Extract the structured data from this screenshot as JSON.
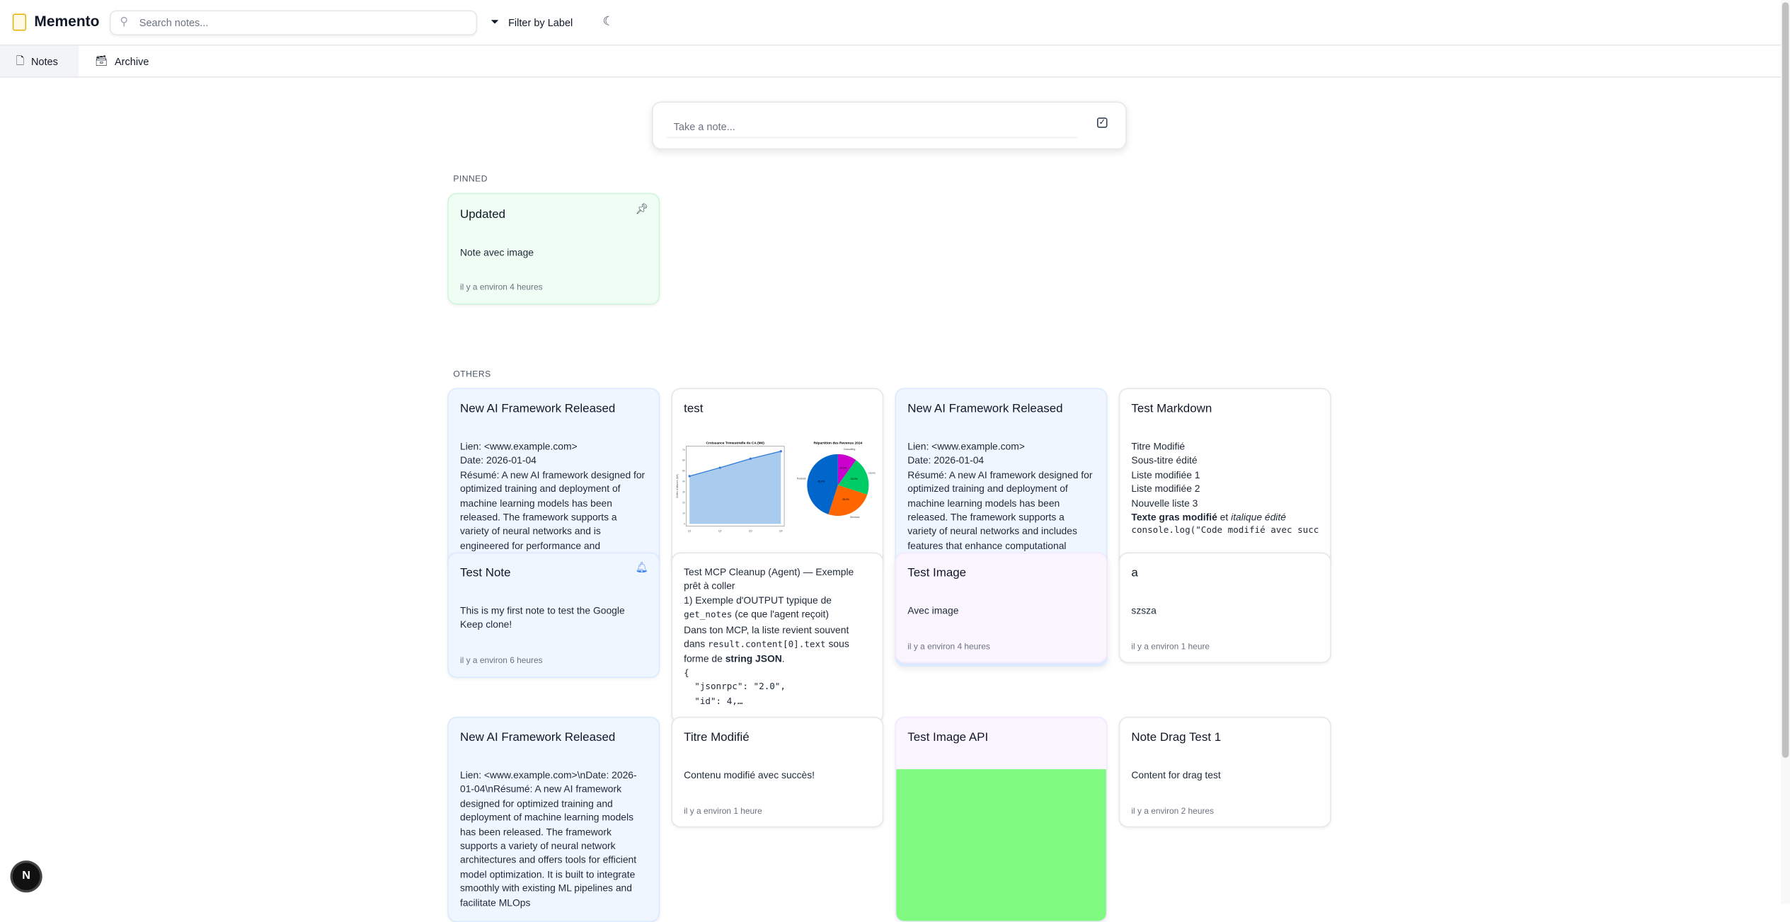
{
  "app": {
    "title": "Memento",
    "search_placeholder": "Search notes...",
    "filter_label": "Filter by Label",
    "take_note_placeholder": "Take a note...",
    "brand_color": "#eab308"
  },
  "tabs": [
    {
      "label": "Notes",
      "active": true
    },
    {
      "label": "Archive",
      "active": false
    }
  ],
  "sections": {
    "pinned": "PINNED",
    "others": "OTHERS"
  },
  "pinned": {
    "title": "Updated",
    "body": "Note avec image",
    "timestamp": "il y a environ 4 heures",
    "color": "#f0fdf4"
  },
  "others": {
    "ai1": {
      "title": "New AI Framework Released",
      "lines": [
        "Lien: <www.example.com>",
        "Date: 2026-01-04",
        "Résumé: A new AI framework designed for optimized training and deployment of machine learning models has been released. The framework supports a variety of neural networks and is engineered for performance and"
      ]
    },
    "test": {
      "title": "test",
      "chart": {
        "title": "Croissance Trimestrielle du CA (M€)",
        "ylabel": "Chiffre d'Affaires (M€)",
        "categories": [
          "Q1",
          "Q2",
          "Q3",
          "Q4"
        ],
        "values": [
          45,
          53,
          61.5,
          68.5
        ],
        "yticks": [
          0,
          10,
          20,
          30,
          40,
          50,
          60,
          70
        ]
      },
      "pie": {
        "title": "Répartition des Revenus 2024",
        "slices": [
          {
            "label": "Consulting",
            "value": 10,
            "pct": "10.0%",
            "color": "#cc00cc"
          },
          {
            "label": "Licences",
            "value": 20,
            "pct": "20.0%",
            "color": "#00cc66"
          },
          {
            "label": "Services",
            "value": 25,
            "pct": "25.0%",
            "color": "#ff6600"
          },
          {
            "label": "Produits",
            "value": 45,
            "pct": "45.0%",
            "color": "#0066cc"
          }
        ]
      }
    },
    "ai2": {
      "title": "New AI Framework Released",
      "lines": [
        "Lien: <www.example.com>",
        "Date: 2026-01-04",
        "Résumé: A new AI framework designed for optimized training and deployment of machine learning models has been released. The framework supports a variety of neural networks and includes features that enhance computational"
      ]
    },
    "markdown": {
      "title": "Test Markdown",
      "lines": [
        "Titre Modifié",
        "Sous-titre édité",
        "Liste modifiée 1",
        "Liste modifiée 2",
        "Nouvelle liste 3"
      ],
      "bold": "Texte gras modifié",
      "et": " et ",
      "italic": "italique édité",
      "code": "console.log(\"Code modifié avec succès\")"
    },
    "testnote": {
      "title": "Test Note",
      "body": "This is my first note to test the Google Keep clone!",
      "timestamp": "il y a environ 6 heures"
    },
    "mcp": {
      "l1": "Test MCP Cleanup (Agent) — Exemple prêt à coller",
      "l2": "1) Exemple d'OUTPUT typique de",
      "code1": "get_notes",
      "l3": " (ce que l'agent reçoit)",
      "l4": "Dans ton MCP, la liste revient souvent dans ",
      "code2": "result.content[0].text",
      "l5": " sous forme de ",
      "bold": "string JSON",
      "dot": ".",
      "json": "{\n  \"jsonrpc\": \"2.0\",\n  \"id\": 4,…"
    },
    "testimage": {
      "title": "Test Image",
      "body": "Avec image",
      "timestamp": "il y a environ 4 heures"
    },
    "a": {
      "title": "a",
      "body": "szsza",
      "timestamp": "il y a environ 1 heure"
    },
    "ai3": {
      "title": "New AI Framework Released",
      "body": "Lien: <www.example.com>\\nDate: 2026-01-04\\nRésumé: A new AI framework designed for optimized training and deployment of machine learning models has been released. The framework supports a variety of neural network architectures and offers tools for efficient model optimization. It is built to integrate smoothly with existing ML pipelines and facilitate MLOps"
    },
    "titre": {
      "title": "Titre Modifié",
      "body": "Contenu modifié avec succès!",
      "timestamp": "il y a environ 1 heure"
    },
    "imageapi": {
      "title": "Test Image API",
      "image_color": "#80f980"
    },
    "drag": {
      "title": "Note Drag Test 1",
      "body": "Content for drag test",
      "timestamp": "il y a environ 2 heures"
    }
  },
  "fab": {
    "label": "N"
  }
}
